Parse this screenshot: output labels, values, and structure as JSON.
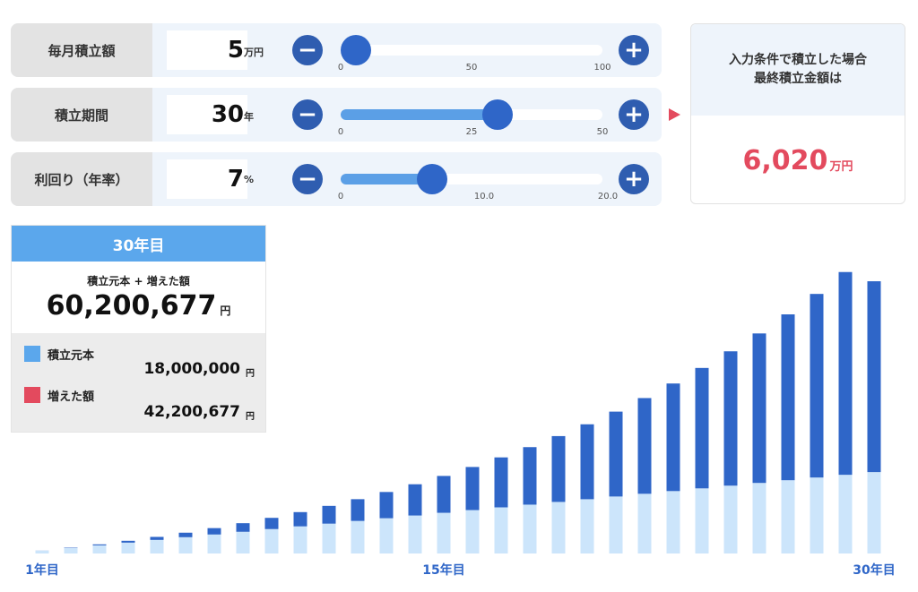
{
  "controls": [
    {
      "label": "毎月積立額",
      "value": "5",
      "unit": "万円",
      "min": 0,
      "max": 100,
      "current": 5,
      "ticks": [
        "0",
        "50",
        "100"
      ]
    },
    {
      "label": "積立期間",
      "value": "30",
      "unit": "年",
      "min": 0,
      "max": 50,
      "current": 30,
      "ticks": [
        "0",
        "25",
        "50"
      ]
    },
    {
      "label": "利回り（年率）",
      "value": "7",
      "unit": "%",
      "min": 0,
      "max": 20,
      "current": 7,
      "ticks": [
        "0",
        "10.0",
        "20.0"
      ]
    }
  ],
  "minus_symbol": "−",
  "plus_symbol": "+",
  "result": {
    "heading_line1": "入力条件で積立した場合",
    "heading_line2": "最終積立金額は",
    "value": "6,020",
    "unit": "万円"
  },
  "summary": {
    "year_label": "30年目",
    "total_label": "積立元本 + 増えた額",
    "total_value": "60,200,677",
    "total_unit": "円",
    "principal_label": "積立元本",
    "principal_value": "18,000,000",
    "principal_unit": "円",
    "gain_label": "増えた額",
    "gain_value": "42,200,677",
    "gain_unit": "円"
  },
  "colors": {
    "principal_bar": "#cce5fb",
    "gain_bar": "#2f66c8",
    "principal_legend": "#5ba7ec",
    "gain_legend": "#e34a5e",
    "accent_red": "#e34a5e"
  },
  "chart_data": {
    "type": "bar",
    "stacked": true,
    "unit": "万円",
    "x": [
      1,
      2,
      3,
      4,
      5,
      6,
      7,
      8,
      9,
      10,
      11,
      12,
      13,
      14,
      15,
      16,
      17,
      18,
      19,
      20,
      21,
      22,
      23,
      24,
      25,
      26,
      27,
      28,
      29,
      30
    ],
    "series": [
      {
        "name": "積立元本",
        "values": [
          60,
          120,
          180,
          240,
          300,
          360,
          420,
          480,
          540,
          600,
          660,
          720,
          780,
          840,
          900,
          960,
          1020,
          1080,
          1140,
          1200,
          1260,
          1320,
          1380,
          1440,
          1500,
          1560,
          1620,
          1680,
          1740,
          1800
        ]
      },
      {
        "name": "増えた額",
        "values": [
          2,
          9,
          22,
          41,
          67,
          100,
          141,
          190,
          248,
          315,
          393,
          481,
          580,
          691,
          815,
          953,
          1105,
          1272,
          1456,
          1657,
          1877,
          2117,
          2379,
          2663,
          2971,
          3306,
          3668,
          4060,
          4484,
          4220
        ]
      }
    ],
    "x_tick_labels": [
      "1年目",
      "15年目",
      "30年目"
    ],
    "ylim": [
      0,
      6100
    ],
    "grid": false
  }
}
